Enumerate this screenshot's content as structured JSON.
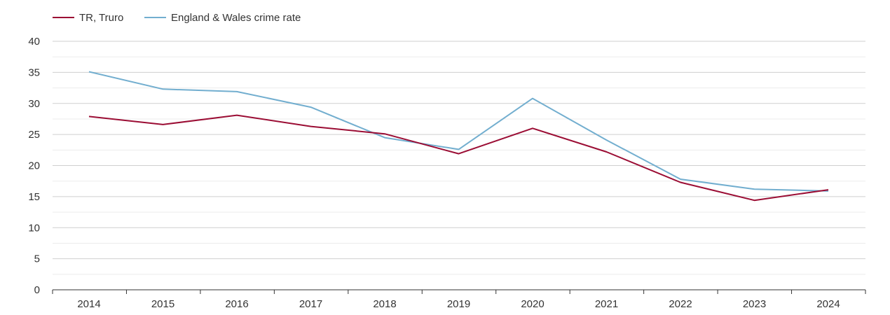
{
  "chart_data": {
    "type": "line",
    "title": "",
    "xlabel": "",
    "ylabel": "",
    "categories": [
      "2014",
      "2015",
      "2016",
      "2017",
      "2018",
      "2019",
      "2020",
      "2021",
      "2022",
      "2023",
      "2024"
    ],
    "ylim": [
      0,
      40
    ],
    "y_ticks": [
      "0",
      "5",
      "10",
      "15",
      "20",
      "25",
      "30",
      "35",
      "40"
    ],
    "grid": true,
    "legend_position": "top-left",
    "series": [
      {
        "name": "TR, Truro",
        "color": "#9b0d34",
        "values": [
          27.9,
          26.6,
          28.1,
          26.3,
          25.1,
          21.9,
          26.0,
          22.2,
          17.3,
          14.4,
          16.1
        ]
      },
      {
        "name": "England & Wales crime rate",
        "color": "#72aecf",
        "values": [
          35.1,
          32.3,
          31.9,
          29.4,
          24.5,
          22.6,
          30.8,
          24.1,
          17.8,
          16.2,
          15.9
        ]
      }
    ]
  }
}
